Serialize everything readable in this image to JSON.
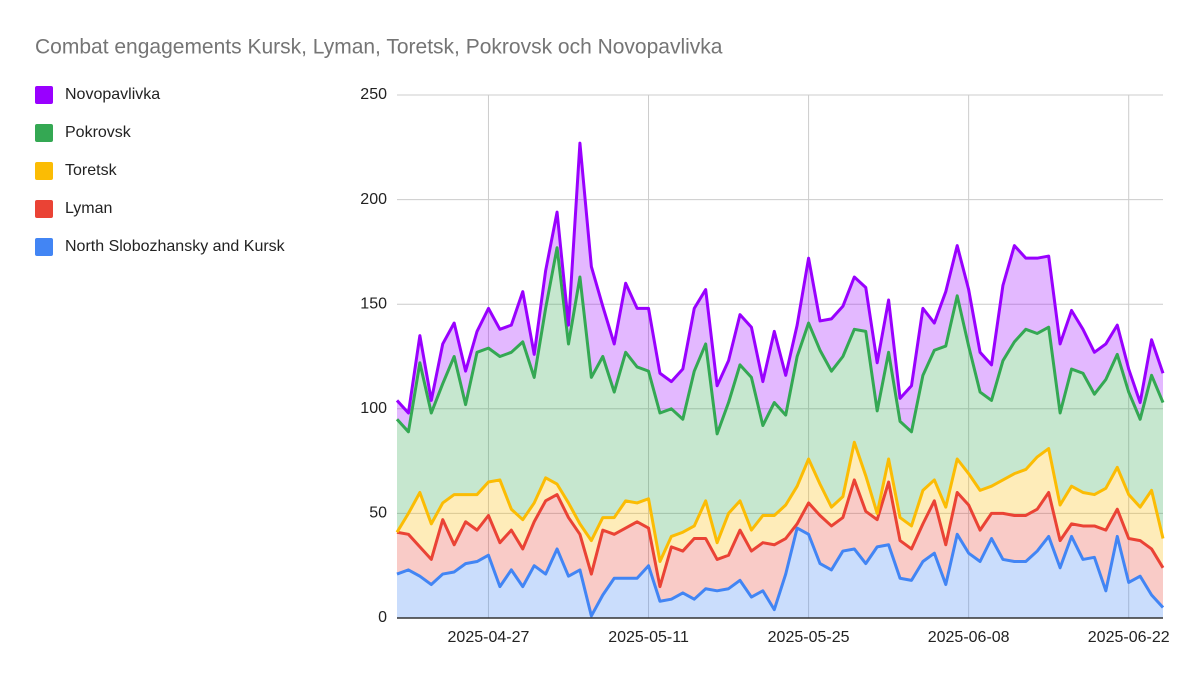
{
  "chart_data": {
    "type": "stacked_area",
    "title": "Combat engagements Kursk, Lyman, Toretsk, Pokrovsk  och Novopavlivka",
    "x": [
      "2025-04-19",
      "2025-04-20",
      "2025-04-21",
      "2025-04-22",
      "2025-04-23",
      "2025-04-24",
      "2025-04-25",
      "2025-04-26",
      "2025-04-27",
      "2025-04-28",
      "2025-04-29",
      "2025-04-30",
      "2025-05-01",
      "2025-05-02",
      "2025-05-03",
      "2025-05-04",
      "2025-05-05",
      "2025-05-06",
      "2025-05-07",
      "2025-05-08",
      "2025-05-09",
      "2025-05-10",
      "2025-05-11",
      "2025-05-12",
      "2025-05-13",
      "2025-05-14",
      "2025-05-15",
      "2025-05-16",
      "2025-05-17",
      "2025-05-18",
      "2025-05-19",
      "2025-05-20",
      "2025-05-21",
      "2025-05-22",
      "2025-05-23",
      "2025-05-24",
      "2025-05-25",
      "2025-05-26",
      "2025-05-27",
      "2025-05-28",
      "2025-05-29",
      "2025-05-30",
      "2025-05-31",
      "2025-06-01",
      "2025-06-02",
      "2025-06-03",
      "2025-06-04",
      "2025-06-05",
      "2025-06-06",
      "2025-06-07",
      "2025-06-08",
      "2025-06-09",
      "2025-06-10",
      "2025-06-11",
      "2025-06-12",
      "2025-06-13",
      "2025-06-14",
      "2025-06-15",
      "2025-06-16",
      "2025-06-17",
      "2025-06-18",
      "2025-06-19",
      "2025-06-20",
      "2025-06-21",
      "2025-06-22",
      "2025-06-23",
      "2025-06-24",
      "2025-06-25"
    ],
    "series": [
      {
        "name": "Novopavlivka",
        "color": "#9900ff",
        "values": [
          9,
          9,
          13,
          6,
          19,
          16,
          16,
          10,
          19,
          13,
          13,
          24,
          11,
          18,
          17,
          9,
          64,
          53,
          24,
          23,
          33,
          28,
          30,
          19,
          13,
          24,
          30,
          26,
          23,
          20,
          24,
          24,
          21,
          34,
          19,
          15,
          31,
          14,
          25,
          24,
          25,
          21,
          23,
          25,
          11,
          22,
          32,
          13,
          26,
          24,
          27,
          19,
          17,
          36,
          46,
          34,
          36,
          34,
          33,
          28,
          21,
          20,
          17,
          14,
          11,
          8,
          17,
          14
        ]
      },
      {
        "name": "Pokrovsk",
        "color": "#34a853",
        "values": [
          54,
          39,
          62,
          53,
          57,
          66,
          43,
          68,
          64,
          59,
          75,
          85,
          60,
          81,
          113,
          76,
          118,
          78,
          77,
          60,
          71,
          65,
          61,
          71,
          61,
          54,
          74,
          75,
          52,
          53,
          65,
          73,
          43,
          54,
          43,
          62,
          65,
          64,
          65,
          67,
          54,
          69,
          49,
          51,
          46,
          45,
          55,
          62,
          77,
          78,
          61,
          47,
          41,
          57,
          63,
          67,
          59,
          58,
          44,
          56,
          57,
          48,
          52,
          54,
          49,
          42,
          55,
          65
        ]
      },
      {
        "name": "Toretsk",
        "color": "#fbbc04",
        "values": [
          0,
          10,
          26,
          17,
          8,
          24,
          13,
          17,
          16,
          30,
          10,
          14,
          9,
          11,
          5,
          7,
          5,
          16,
          6,
          8,
          13,
          9,
          14,
          12,
          5,
          9,
          6,
          18,
          8,
          20,
          14,
          10,
          13,
          14,
          16,
          18,
          21,
          15,
          9,
          10,
          18,
          17,
          3,
          11,
          11,
          11,
          16,
          10,
          18,
          16,
          15,
          19,
          13,
          16,
          20,
          22,
          25,
          21,
          17,
          18,
          16,
          15,
          20,
          20,
          21,
          16,
          28,
          14
        ]
      },
      {
        "name": "Lyman",
        "color": "#ea4335",
        "values": [
          20,
          17,
          14,
          12,
          26,
          13,
          20,
          15,
          19,
          21,
          19,
          18,
          21,
          35,
          26,
          28,
          17,
          20,
          31,
          21,
          24,
          27,
          18,
          7,
          25,
          20,
          29,
          24,
          15,
          16,
          24,
          22,
          23,
          31,
          17,
          2,
          15,
          23,
          21,
          16,
          33,
          25,
          13,
          30,
          18,
          15,
          18,
          25,
          19,
          20,
          23,
          15,
          12,
          22,
          22,
          22,
          20,
          21,
          13,
          6,
          16,
          15,
          29,
          13,
          21,
          17,
          22,
          19
        ]
      },
      {
        "name": "North Slobozhansky and Kursk",
        "color": "#4285f4",
        "values": [
          21,
          23,
          20,
          16,
          21,
          22,
          26,
          27,
          30,
          15,
          23,
          15,
          25,
          21,
          33,
          20,
          23,
          1,
          11,
          19,
          19,
          19,
          25,
          8,
          9,
          12,
          9,
          14,
          13,
          14,
          18,
          10,
          13,
          4,
          21,
          43,
          40,
          26,
          23,
          32,
          33,
          26,
          34,
          35,
          19,
          18,
          27,
          31,
          16,
          40,
          31,
          27,
          38,
          28,
          27,
          27,
          32,
          39,
          24,
          39,
          28,
          29,
          13,
          39,
          17,
          20,
          11,
          5
        ]
      }
    ],
    "xlim": [
      "2025-04-19",
      "2025-06-25"
    ],
    "xticks": [
      "2025-04-27",
      "2025-05-11",
      "2025-05-25",
      "2025-06-08",
      "2025-06-22"
    ],
    "ylim": [
      0,
      250
    ],
    "yticks": [
      0,
      50,
      100,
      150,
      200,
      250
    ],
    "grid": true,
    "legend": "left"
  }
}
